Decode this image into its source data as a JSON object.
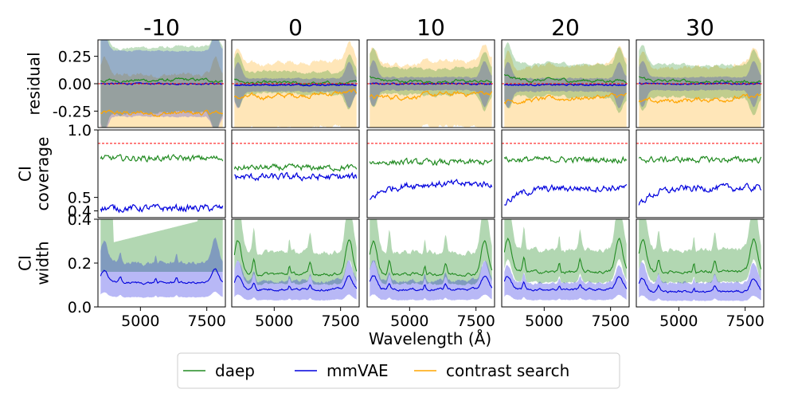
{
  "chart_data": {
    "type": "line",
    "columns": [
      "-10",
      "0",
      "10",
      "20",
      "30"
    ],
    "rows": [
      {
        "name": "residual",
        "ylabel": "residual",
        "ylim": [
          -0.4,
          0.4
        ],
        "yticks": [
          "0.25",
          "0.00",
          "-0.25"
        ],
        "ytick_values": [
          0.25,
          0.0,
          -0.25
        ],
        "reference_line": 0.0
      },
      {
        "name": "coverage",
        "ylabel": [
          "CI",
          "coverage"
        ],
        "ylim": [
          0.35,
          1.0
        ],
        "yticks": [
          "1.0",
          "0.5",
          "0.4"
        ],
        "ytick_values": [
          1.0,
          0.5,
          0.4
        ],
        "reference_line": 0.9
      },
      {
        "name": "width",
        "ylabel": [
          "CI",
          "width"
        ],
        "ylim": [
          0.0,
          0.4
        ],
        "yticks": [
          "0.4",
          "0.2",
          "0.0"
        ],
        "ytick_values": [
          0.4,
          0.2,
          0.0
        ]
      }
    ],
    "xlabel": "Wavelength (Å)",
    "xlim": [
      3400,
      8200
    ],
    "xticks": [
      "5000",
      "7500"
    ],
    "xtick_values": [
      5000,
      7500
    ],
    "colors": {
      "daep": "#228b22",
      "mmVAE": "#0000dd",
      "contrast search": "#ffa500",
      "reference": "#ff0000"
    },
    "legend": [
      "daep",
      "mmVAE",
      "contrast search"
    ],
    "series_summary": {
      "residual": {
        "daep": {
          "mean": [
            0.03,
            0.0,
            0.02,
            0.03,
            0.02
          ],
          "band": [
            0.3,
            0.1,
            0.12,
            0.15,
            0.15
          ]
        },
        "mmVAE": {
          "mean": [
            0.0,
            -0.01,
            0.0,
            -0.01,
            0.0
          ],
          "band": [
            0.3,
            0.06,
            0.06,
            0.06,
            0.06
          ]
        },
        "contrast search": {
          "mean": [
            -0.27,
            -0.13,
            -0.13,
            -0.16,
            -0.17
          ],
          "band": [
            0.35,
            0.3,
            0.3,
            0.3,
            0.3
          ]
        }
      },
      "coverage": {
        "daep": [
          0.79,
          0.72,
          0.76,
          0.78,
          0.78
        ],
        "mmVAE": [
          0.42,
          0.65,
          0.6,
          0.57,
          0.57
        ]
      },
      "width": {
        "daep": {
          "mean": [
            null,
            0.15,
            0.15,
            0.16,
            0.16
          ],
          "band_upper": [
            0.4,
            0.25,
            0.25,
            0.26,
            0.26
          ]
        },
        "mmVAE": {
          "mean": [
            0.11,
            0.08,
            0.08,
            0.08,
            0.07
          ],
          "band_upper": [
            0.2,
            0.12,
            0.12,
            0.11,
            0.11
          ]
        }
      }
    }
  }
}
